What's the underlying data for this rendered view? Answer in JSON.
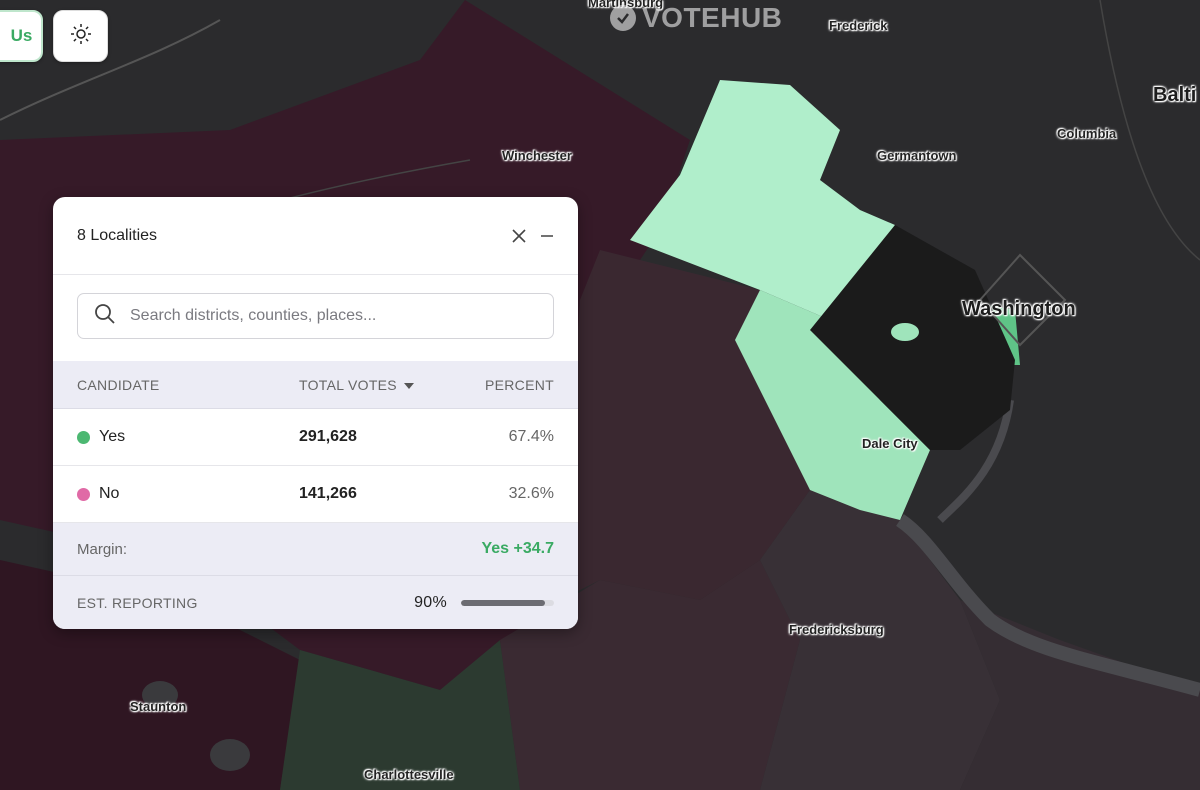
{
  "header": {
    "us_button_label": "Us",
    "theme_icon": "sun-icon",
    "watermark": "VOTEHUB"
  },
  "map": {
    "places": {
      "martinsburg": "Martinsburg",
      "frederick": "Frederick",
      "baltimore": "Balti",
      "columbia": "Columbia",
      "germantown": "Germantown",
      "winchester": "Winchester",
      "washington": "Washington",
      "dale_city": "Dale City",
      "fredericksburg": "Fredericksburg",
      "staunton": "Staunton",
      "charlottesville": "Charlottesville"
    },
    "colors": {
      "yes_light": "#b0eecb",
      "yes_mid": "#9fe4bb",
      "yes_strong": "#5fc487",
      "no_region": "#3a2730",
      "no_region_dark": "#321a26",
      "undecided": "#1b1b1b"
    }
  },
  "panel": {
    "title": "8 Localities",
    "search_placeholder": "Search districts, counties, places...",
    "columns": {
      "candidate": "CANDIDATE",
      "votes": "TOTAL VOTES",
      "percent": "PERCENT"
    },
    "rows": [
      {
        "name": "Yes",
        "votes": "291,628",
        "percent": "67.4%",
        "color": "#4cb872"
      },
      {
        "name": "No",
        "votes": "141,266",
        "percent": "32.6%",
        "color": "#e06aa6"
      }
    ],
    "margin_label": "Margin:",
    "margin_value": "Yes +34.7",
    "reporting_label": "EST. REPORTING",
    "reporting_value": "90%",
    "reporting_fraction": 0.9
  }
}
